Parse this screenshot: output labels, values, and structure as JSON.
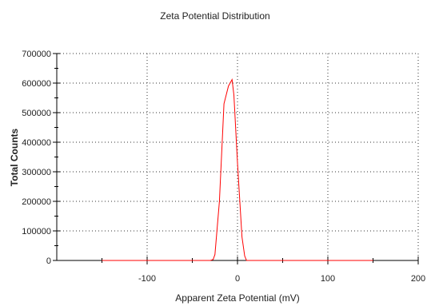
{
  "chart_data": {
    "type": "line",
    "title": "Zeta Potential Distribution",
    "xlabel": "Apparent Zeta Potential (mV)",
    "ylabel": "Total Counts",
    "xlim": [
      -200,
      200
    ],
    "ylim": [
      0,
      700000
    ],
    "x_ticks": [
      -100,
      0,
      100,
      200
    ],
    "y_ticks": [
      0,
      100000,
      200000,
      300000,
      400000,
      500000,
      600000,
      700000
    ],
    "grid": true,
    "legend": "none",
    "series": [
      {
        "color": "#ff0000",
        "x": [
          -150,
          -100,
          -50,
          -30,
          -27,
          -25,
          -20,
          -15,
          -10,
          -6,
          -4,
          0,
          5,
          8,
          10,
          20,
          50,
          100,
          150
        ],
        "y": [
          0,
          0,
          0,
          0,
          3000,
          20000,
          200000,
          530000,
          590000,
          612000,
          560000,
          330000,
          80000,
          15000,
          0,
          0,
          0,
          0,
          0
        ]
      }
    ]
  }
}
